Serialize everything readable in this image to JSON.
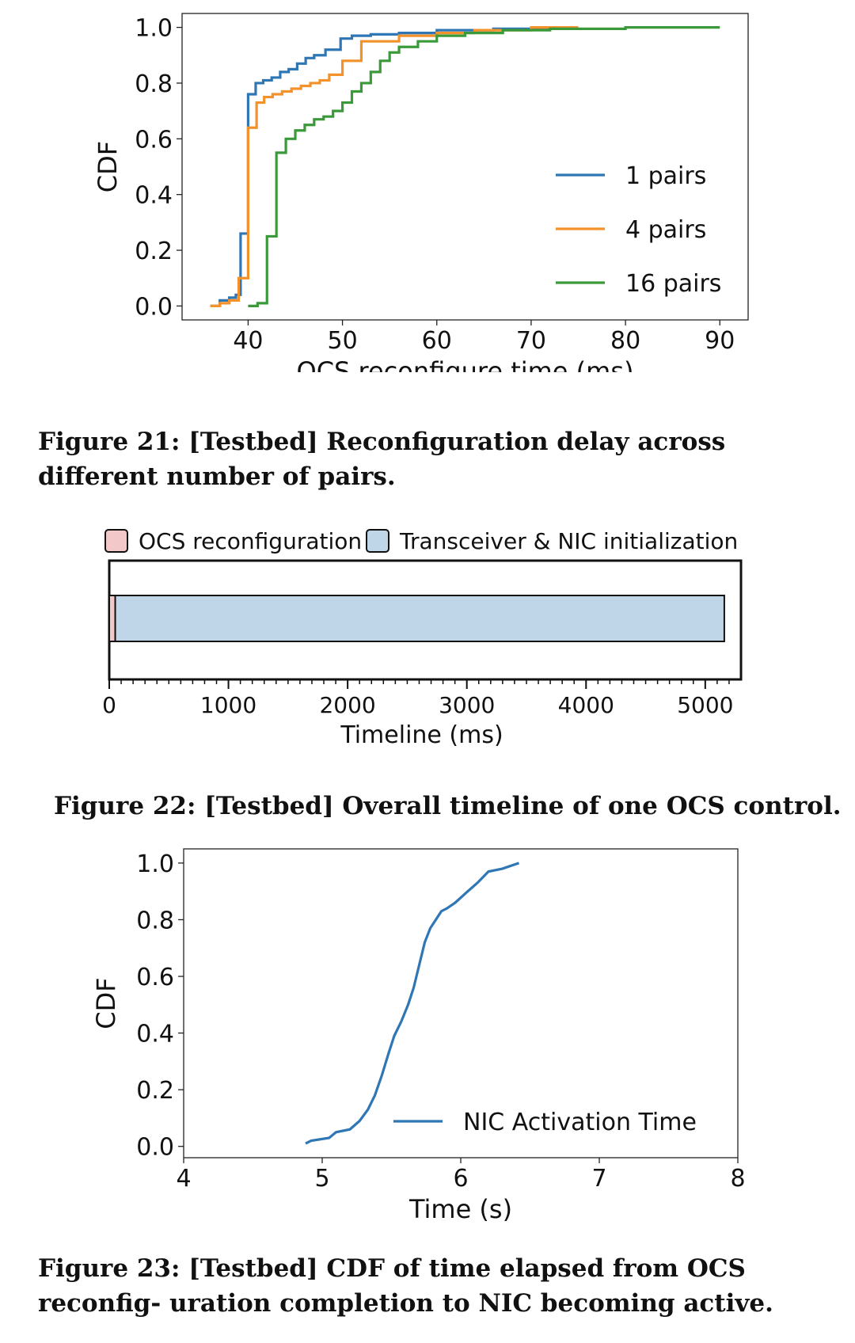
{
  "colors": {
    "blue": "#2f77b4",
    "orange": "#f3922b",
    "green": "#3a9a3a",
    "ocs_fill": "#f3c8c8",
    "nic_fill": "#bfd6e9"
  },
  "fig21": {
    "caption": "Figure 21: [Testbed] Reconfiguration delay across different number of pairs.",
    "chart_data": {
      "type": "line",
      "title": "",
      "xlabel": "OCS reconfigure time (ms)",
      "ylabel": "CDF",
      "xlim": [
        33,
        93
      ],
      "ylim": [
        -0.05,
        1.05
      ],
      "xticks": [
        40,
        50,
        60,
        70,
        80,
        90
      ],
      "yticks": [
        0.0,
        0.2,
        0.4,
        0.6,
        0.8,
        1.0
      ],
      "xtick_labels": [
        "40",
        "50",
        "60",
        "70",
        "80",
        "90"
      ],
      "ytick_labels": [
        "0.0",
        "0.2",
        "0.4",
        "0.6",
        "0.8",
        "1.0"
      ],
      "legend_position": "center-right",
      "series": [
        {
          "name": "1 pairs",
          "color": "#2f77b4",
          "step": true,
          "x": [
            36,
            37,
            38,
            38.7,
            39.2,
            40,
            40.8,
            41.6,
            42.5,
            43.4,
            44.3,
            45.2,
            46.1,
            47,
            48.2,
            49.8,
            51,
            53,
            56,
            60,
            66,
            72,
            75
          ],
          "y": [
            0.0,
            0.02,
            0.03,
            0.04,
            0.26,
            0.76,
            0.8,
            0.81,
            0.82,
            0.84,
            0.85,
            0.87,
            0.89,
            0.9,
            0.92,
            0.96,
            0.97,
            0.975,
            0.98,
            0.99,
            0.995,
            1.0,
            1.0
          ]
        },
        {
          "name": "4 pairs",
          "color": "#f3922b",
          "step": true,
          "x": [
            36,
            37,
            38,
            39,
            40,
            40.9,
            41.7,
            42.6,
            43.6,
            44.6,
            45.6,
            46.6,
            47.6,
            48.6,
            50,
            52,
            56,
            60,
            64,
            70,
            75
          ],
          "y": [
            0.0,
            0.01,
            0.02,
            0.1,
            0.64,
            0.73,
            0.75,
            0.76,
            0.77,
            0.78,
            0.79,
            0.8,
            0.81,
            0.83,
            0.88,
            0.95,
            0.97,
            0.98,
            0.99,
            1.0,
            1.0
          ]
        },
        {
          "name": "16 pairs",
          "color": "#3a9a3a",
          "step": true,
          "x": [
            40,
            41,
            42,
            43,
            44,
            45,
            46,
            47,
            48,
            49,
            50,
            51,
            52,
            53,
            54,
            55,
            56,
            58,
            60,
            63,
            67,
            72,
            80,
            90
          ],
          "y": [
            0.0,
            0.01,
            0.25,
            0.55,
            0.6,
            0.63,
            0.65,
            0.67,
            0.68,
            0.7,
            0.73,
            0.77,
            0.8,
            0.84,
            0.88,
            0.91,
            0.93,
            0.95,
            0.97,
            0.98,
            0.99,
            0.995,
            1.0,
            1.0
          ]
        }
      ]
    }
  },
  "fig22": {
    "caption": "Figure 22: [Testbed] Overall timeline of one OCS control.",
    "chart_data": {
      "type": "bar",
      "orientation": "horizontal-stacked",
      "xlabel": "Timeline (ms)",
      "xlim": [
        0,
        5300
      ],
      "xticks": [
        0,
        1000,
        2000,
        3000,
        4000,
        5000
      ],
      "xtick_labels": [
        "0",
        "1000",
        "2000",
        "3000",
        "4000",
        "5000"
      ],
      "legend_position": "top",
      "segments": [
        {
          "name": "OCS reconfiguration",
          "start": 0,
          "duration": 50,
          "color": "#f3c8c8"
        },
        {
          "name": "Transceiver & NIC initialization",
          "start": 50,
          "duration": 5110,
          "color": "#bfd6e9"
        }
      ]
    }
  },
  "fig23": {
    "caption": "Figure 23: [Testbed] CDF of time elapsed from OCS reconfig- uration completion to NIC becoming active.",
    "chart_data": {
      "type": "line",
      "xlabel": "Time (s)",
      "ylabel": "CDF",
      "xlim": [
        4,
        8
      ],
      "ylim": [
        -0.04,
        1.05
      ],
      "xticks": [
        4,
        5,
        6,
        7,
        8
      ],
      "yticks": [
        0.0,
        0.2,
        0.4,
        0.6,
        0.8,
        1.0
      ],
      "xtick_labels": [
        "4",
        "5",
        "6",
        "7",
        "8"
      ],
      "ytick_labels": [
        "0.0",
        "0.2",
        "0.4",
        "0.6",
        "0.8",
        "1.0"
      ],
      "legend_position": "bottom-right",
      "series": [
        {
          "name": "NIC Activation Time",
          "color": "#2f77b4",
          "x": [
            4.88,
            4.92,
            5.05,
            5.1,
            5.2,
            5.27,
            5.33,
            5.38,
            5.43,
            5.48,
            5.52,
            5.57,
            5.62,
            5.66,
            5.7,
            5.74,
            5.78,
            5.82,
            5.86,
            5.9,
            5.96,
            6.05,
            6.12,
            6.2,
            6.3,
            6.42
          ],
          "y": [
            0.01,
            0.02,
            0.03,
            0.05,
            0.06,
            0.09,
            0.13,
            0.18,
            0.25,
            0.33,
            0.39,
            0.44,
            0.5,
            0.56,
            0.64,
            0.72,
            0.77,
            0.8,
            0.83,
            0.84,
            0.86,
            0.9,
            0.93,
            0.97,
            0.98,
            1.0
          ]
        }
      ]
    }
  }
}
